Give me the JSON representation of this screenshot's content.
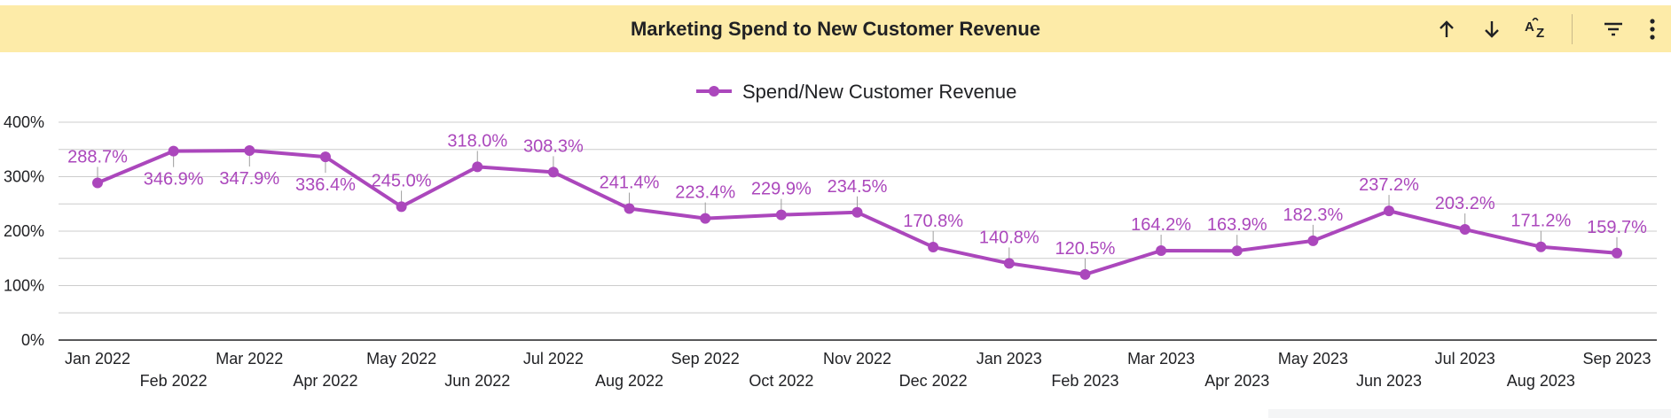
{
  "header": {
    "title": "Marketing Spend to New Customer Revenue"
  },
  "toolbar": {
    "icons": [
      "sort-ascending-icon",
      "sort-descending-icon",
      "sort-az-icon",
      "filter-icon",
      "more-vert-icon"
    ]
  },
  "colors": {
    "header_bg": "#fdeba8",
    "series": "#ab47bc",
    "grid": "#cccccc",
    "axis": "#202124"
  },
  "chart_data": {
    "type": "line",
    "title": "Marketing Spend to New Customer Revenue",
    "legend_position": "top-center",
    "grid": true,
    "xlabel": "",
    "ylabel": "",
    "ylim": [
      0,
      400
    ],
    "y_ticks": [
      0,
      100,
      200,
      300,
      400
    ],
    "y_tick_labels": [
      "0%",
      "100%",
      "200%",
      "300%",
      "400%"
    ],
    "categories": [
      "Jan 2022",
      "Feb 2022",
      "Mar 2022",
      "Apr 2022",
      "May 2022",
      "Jun 2022",
      "Jul 2022",
      "Aug 2022",
      "Sep 2022",
      "Oct 2022",
      "Nov 2022",
      "Dec 2022",
      "Jan 2023",
      "Feb 2023",
      "Mar 2023",
      "Apr 2023",
      "May 2023",
      "Jun 2023",
      "Jul 2023",
      "Aug 2023",
      "Sep 2023"
    ],
    "series": [
      {
        "name": "Spend/New Customer Revenue",
        "values": [
          288.7,
          346.9,
          347.9,
          336.4,
          245.0,
          318.0,
          308.3,
          241.4,
          223.4,
          229.9,
          234.5,
          170.8,
          140.8,
          120.5,
          164.2,
          163.9,
          182.3,
          237.2,
          203.2,
          171.2,
          159.7
        ],
        "labels": [
          "288.7%",
          "346.9%",
          "347.9%",
          "336.4%",
          "245.0%",
          "318.0%",
          "308.3%",
          "241.4%",
          "223.4%",
          "229.9%",
          "234.5%",
          "170.8%",
          "140.8%",
          "120.5%",
          "164.2%",
          "163.9%",
          "182.3%",
          "237.2%",
          "203.2%",
          "171.2%",
          "159.7%"
        ],
        "label_side": [
          "above",
          "below",
          "below",
          "below",
          "above",
          "above",
          "above",
          "above",
          "above",
          "above",
          "above",
          "above",
          "above",
          "above",
          "above",
          "above",
          "above",
          "above",
          "above",
          "above",
          "above"
        ]
      }
    ]
  }
}
